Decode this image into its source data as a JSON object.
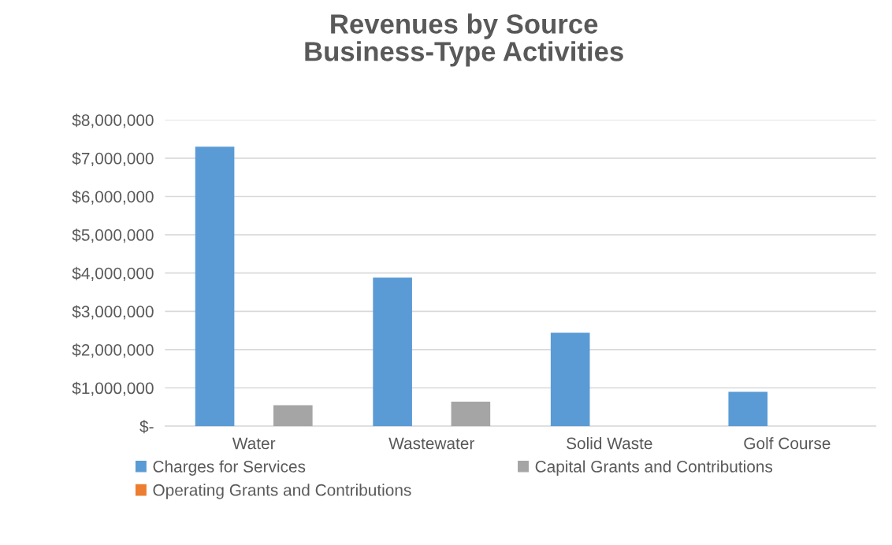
{
  "chart_data": {
    "type": "bar",
    "title": "Revenues by Source\nBusiness-Type Activities",
    "categories": [
      "Water",
      "Wastewater",
      "Solid Waste",
      "Golf Course"
    ],
    "series": [
      {
        "name": "Charges for Services",
        "color": "#5b9bd5",
        "values": [
          7300000,
          3880000,
          2440000,
          900000
        ]
      },
      {
        "name": "Operating Grants and Contributions",
        "color": "#ed7d31",
        "values": [
          0,
          0,
          0,
          0
        ]
      },
      {
        "name": "Capital Grants and Contributions",
        "color": "#a5a5a5",
        "values": [
          550000,
          640000,
          0,
          0
        ]
      }
    ],
    "ylim": [
      0,
      8000000
    ],
    "yticks": [
      {
        "value": 0,
        "label": "$-"
      },
      {
        "value": 1000000,
        "label": "$1,000,000"
      },
      {
        "value": 2000000,
        "label": "$2,000,000"
      },
      {
        "value": 3000000,
        "label": "$3,000,000"
      },
      {
        "value": 4000000,
        "label": "$4,000,000"
      },
      {
        "value": 5000000,
        "label": "$5,000,000"
      },
      {
        "value": 6000000,
        "label": "$6,000,000"
      },
      {
        "value": 7000000,
        "label": "$7,000,000"
      },
      {
        "value": 8000000,
        "label": "$8,000,000"
      }
    ],
    "grid": "y",
    "legend": "bottom"
  }
}
